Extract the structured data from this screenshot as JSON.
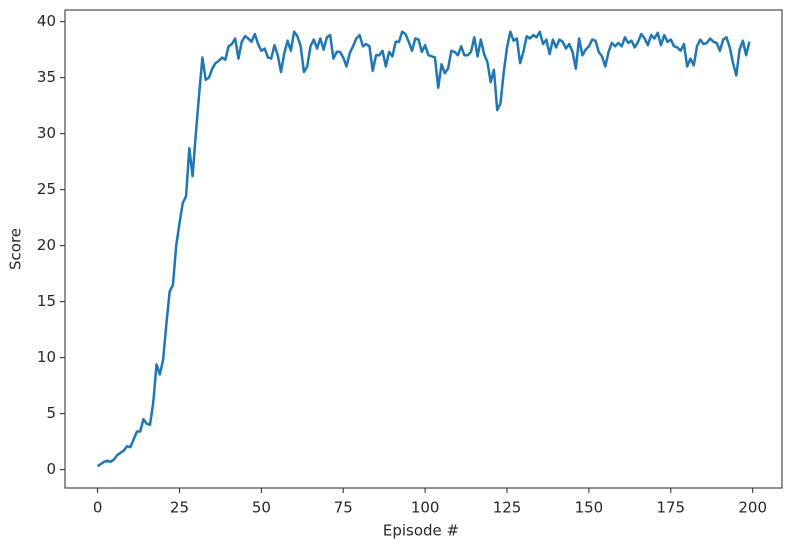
{
  "chart_data": {
    "type": "line",
    "xlabel": "Episode #",
    "ylabel": "Score",
    "xlim": [
      -9.95,
      208.95
    ],
    "ylim": [
      -1.64,
      41.04
    ],
    "xticks": [
      0,
      25,
      50,
      75,
      100,
      125,
      150,
      175,
      200
    ],
    "yticks": [
      0,
      5,
      10,
      15,
      20,
      25,
      30,
      35,
      40
    ],
    "grid": false,
    "x": [
      0,
      1,
      2,
      3,
      4,
      5,
      6,
      7,
      8,
      9,
      10,
      11,
      12,
      13,
      14,
      15,
      16,
      17,
      18,
      19,
      20,
      21,
      22,
      23,
      24,
      25,
      26,
      27,
      28,
      29,
      30,
      31,
      32,
      33,
      34,
      35,
      36,
      37,
      38,
      39,
      40,
      41,
      42,
      43,
      44,
      45,
      46,
      47,
      48,
      49,
      50,
      51,
      52,
      53,
      54,
      55,
      56,
      57,
      58,
      59,
      60,
      61,
      62,
      63,
      64,
      65,
      66,
      67,
      68,
      69,
      70,
      71,
      72,
      73,
      74,
      75,
      76,
      77,
      78,
      79,
      80,
      81,
      82,
      83,
      84,
      85,
      86,
      87,
      88,
      89,
      90,
      91,
      92,
      93,
      94,
      95,
      96,
      97,
      98,
      99,
      100,
      101,
      102,
      103,
      104,
      105,
      106,
      107,
      108,
      109,
      110,
      111,
      112,
      113,
      114,
      115,
      116,
      117,
      118,
      119,
      120,
      121,
      122,
      123,
      124,
      125,
      126,
      127,
      128,
      129,
      130,
      131,
      132,
      133,
      134,
      135,
      136,
      137,
      138,
      139,
      140,
      141,
      142,
      143,
      144,
      145,
      146,
      147,
      148,
      149,
      150,
      151,
      152,
      153,
      154,
      155,
      156,
      157,
      158,
      159,
      160,
      161,
      162,
      163,
      164,
      165,
      166,
      167,
      168,
      169,
      170,
      171,
      172,
      173,
      174,
      175,
      176,
      177,
      178,
      179,
      180,
      181,
      182,
      183,
      184,
      185,
      186,
      187,
      188,
      189,
      190,
      191,
      192,
      193,
      194,
      195,
      196,
      197,
      198,
      199
    ],
    "series": [
      {
        "color": "#1f77b4",
        "values": [
          0.3,
          0.5,
          0.7,
          0.8,
          0.7,
          0.9,
          1.3,
          1.5,
          1.7,
          2.1,
          2.0,
          2.7,
          3.4,
          3.4,
          4.5,
          4.1,
          4.0,
          6.0,
          9.4,
          8.5,
          9.8,
          13.0,
          15.9,
          16.5,
          20.0,
          22.0,
          23.8,
          24.4,
          28.7,
          26.2,
          30.0,
          33.5,
          36.8,
          34.8,
          35.0,
          35.8,
          36.3,
          36.5,
          36.8,
          36.6,
          37.8,
          38.0,
          38.5,
          36.7,
          38.2,
          38.7,
          38.5,
          38.2,
          38.9,
          38.0,
          37.4,
          37.6,
          36.8,
          36.7,
          37.9,
          37.0,
          35.5,
          37.2,
          38.3,
          37.4,
          39.1,
          38.7,
          37.8,
          35.5,
          36.0,
          37.8,
          38.4,
          37.6,
          38.5,
          37.5,
          38.6,
          38.8,
          36.7,
          37.3,
          37.3,
          36.8,
          36.0,
          37.2,
          37.8,
          38.5,
          38.8,
          37.8,
          38.0,
          37.8,
          35.6,
          37.0,
          37.0,
          37.4,
          36.0,
          37.3,
          36.9,
          38.2,
          38.2,
          39.1,
          38.9,
          38.2,
          37.4,
          38.5,
          38.4,
          37.3,
          37.9,
          37.0,
          36.9,
          36.8,
          34.1,
          36.2,
          35.4,
          35.8,
          37.4,
          37.3,
          37.0,
          37.8,
          37.0,
          37.0,
          37.3,
          38.6,
          36.9,
          38.4,
          37.1,
          36.4,
          34.6,
          35.7,
          32.1,
          32.7,
          35.5,
          37.7,
          39.1,
          38.3,
          38.5,
          36.3,
          37.3,
          38.7,
          38.5,
          38.8,
          38.6,
          39.1,
          38.0,
          38.4,
          37.1,
          38.4,
          37.7,
          38.4,
          38.2,
          37.6,
          38.0,
          37.3,
          35.8,
          38.5,
          37.0,
          37.5,
          37.8,
          38.4,
          38.3,
          37.3,
          36.9,
          36.0,
          37.3,
          38.1,
          37.8,
          38.1,
          37.8,
          38.6,
          38.1,
          38.3,
          37.7,
          38.2,
          38.9,
          38.5,
          37.9,
          38.8,
          38.5,
          39.0,
          37.9,
          38.8,
          38.2,
          38.4,
          37.8,
          37.7,
          37.4,
          38.0,
          36.0,
          36.7,
          36.1,
          37.8,
          38.4,
          38.0,
          38.1,
          38.5,
          38.2,
          38.1,
          37.4,
          38.4,
          38.6,
          37.7,
          36.3,
          35.2,
          37.5,
          38.3,
          37.0,
          38.2
        ]
      }
    ]
  }
}
